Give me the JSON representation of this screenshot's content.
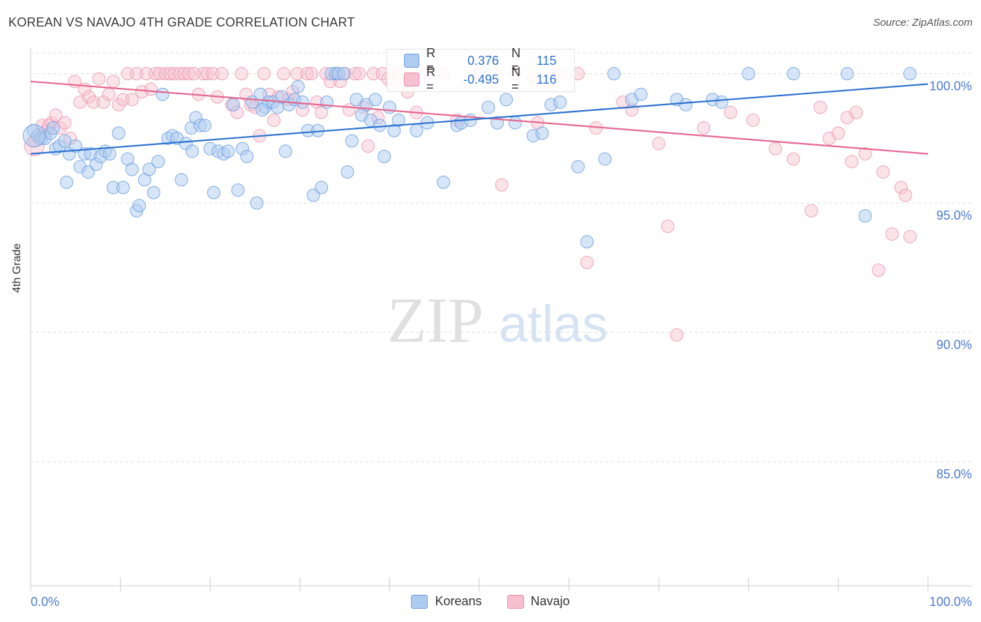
{
  "header": {
    "title": "KOREAN VS NAVAJO 4TH GRADE CORRELATION CHART",
    "source": "Source: ZipAtlas.com"
  },
  "watermark": {
    "zip": "ZIP",
    "atlas": "atlas"
  },
  "stats": {
    "koreans": {
      "r_label": "R =",
      "r_value": "0.376",
      "n_label": "N =",
      "n_value": "115"
    },
    "navajo": {
      "r_label": "R =",
      "r_value": "-0.495",
      "n_label": "N =",
      "n_value": "116"
    }
  },
  "legend": {
    "koreans": "Koreans",
    "navajo": "Navajo"
  },
  "colors": {
    "koreans_fill": "#aecbf0",
    "koreans_stroke": "#6a9ee0",
    "koreans_line": "#2f73d0",
    "navajo_fill": "#f6c0d0",
    "navajo_stroke": "#ea8eab",
    "navajo_line": "#e56890",
    "axis_label": "#4b7bd0",
    "grid": "#dddddd"
  },
  "chart_data": {
    "type": "scatter",
    "title": "KOREAN VS NAVAJO 4TH GRADE CORRELATION CHART",
    "ylabel": "4th Grade",
    "xlabel": "",
    "xlim": [
      0,
      100
    ],
    "ylim": [
      80.2,
      100.8
    ],
    "x_ticks": [
      "0.0%",
      "100.0%"
    ],
    "y_ticks": [
      {
        "value": 100,
        "label": "100.0%"
      },
      {
        "value": 95,
        "label": "95.0%"
      },
      {
        "value": 90,
        "label": "90.0%"
      },
      {
        "value": 85,
        "label": "85.0%"
      }
    ],
    "legend_position": "bottom",
    "grid": true,
    "series": [
      {
        "name": "Koreans",
        "trend": [
          [
            0,
            96.9
          ],
          [
            100,
            99.6
          ]
        ],
        "points": [
          [
            0.3,
            97.8
          ],
          [
            0.8,
            97.6
          ],
          [
            1.2,
            97.5
          ],
          [
            1.6,
            97.5
          ],
          [
            2.2,
            97.7
          ],
          [
            2.8,
            97.1
          ],
          [
            3.2,
            97.2
          ],
          [
            3.8,
            97.4
          ],
          [
            4.0,
            95.8
          ],
          [
            4.3,
            96.9
          ],
          [
            5.0,
            97.2
          ],
          [
            5.5,
            96.4
          ],
          [
            6.0,
            96.9
          ],
          [
            6.4,
            96.2
          ],
          [
            6.7,
            96.9
          ],
          [
            7.3,
            96.5
          ],
          [
            7.8,
            96.8
          ],
          [
            8.3,
            97.0
          ],
          [
            8.8,
            96.9
          ],
          [
            9.2,
            95.6
          ],
          [
            9.8,
            97.7
          ],
          [
            10.3,
            95.6
          ],
          [
            10.8,
            96.7
          ],
          [
            11.3,
            96.3
          ],
          [
            11.8,
            94.7
          ],
          [
            12.1,
            94.9
          ],
          [
            12.7,
            95.9
          ],
          [
            13.2,
            96.3
          ],
          [
            13.7,
            95.4
          ],
          [
            14.2,
            96.6
          ],
          [
            14.7,
            99.2
          ],
          [
            15.3,
            97.5
          ],
          [
            15.8,
            97.6
          ],
          [
            16.3,
            97.5
          ],
          [
            16.8,
            95.9
          ],
          [
            17.3,
            97.3
          ],
          [
            17.9,
            97.9
          ],
          [
            18.4,
            98.3
          ],
          [
            18.9,
            98.0
          ],
          [
            19.4,
            98.0
          ],
          [
            20.0,
            97.1
          ],
          [
            20.4,
            95.4
          ],
          [
            20.9,
            97.0
          ],
          [
            21.5,
            96.9
          ],
          [
            22.0,
            97.0
          ],
          [
            22.6,
            98.8
          ],
          [
            23.1,
            95.5
          ],
          [
            23.6,
            97.1
          ],
          [
            24.1,
            96.8
          ],
          [
            24.7,
            98.9
          ],
          [
            25.2,
            95.0
          ],
          [
            25.6,
            99.2
          ],
          [
            26.1,
            98.7
          ],
          [
            26.5,
            98.9
          ],
          [
            27.0,
            98.9
          ],
          [
            27.5,
            98.7
          ],
          [
            28.0,
            99.1
          ],
          [
            28.4,
            97.0
          ],
          [
            28.8,
            98.8
          ],
          [
            29.4,
            99.0
          ],
          [
            29.8,
            99.5
          ],
          [
            30.3,
            98.9
          ],
          [
            30.9,
            97.8
          ],
          [
            31.5,
            95.3
          ],
          [
            32.0,
            97.8
          ],
          [
            32.4,
            95.6
          ],
          [
            33.0,
            98.9
          ],
          [
            33.5,
            100.0
          ],
          [
            34.0,
            100.0
          ],
          [
            34.3,
            100.0
          ],
          [
            34.9,
            100.0
          ],
          [
            35.3,
            96.2
          ],
          [
            35.8,
            97.4
          ],
          [
            36.3,
            99.0
          ],
          [
            36.9,
            98.4
          ],
          [
            37.4,
            98.8
          ],
          [
            37.9,
            98.2
          ],
          [
            38.4,
            99.0
          ],
          [
            38.9,
            98.0
          ],
          [
            39.4,
            96.8
          ],
          [
            40.0,
            98.7
          ],
          [
            40.5,
            97.8
          ],
          [
            41.0,
            98.2
          ],
          [
            43.0,
            97.8
          ],
          [
            46.0,
            95.8
          ],
          [
            47.5,
            98.0
          ],
          [
            48.0,
            98.1
          ],
          [
            49.0,
            98.2
          ],
          [
            51.0,
            98.7
          ],
          [
            52.0,
            98.1
          ],
          [
            53.0,
            99.0
          ],
          [
            54.0,
            98.1
          ],
          [
            56.0,
            97.6
          ],
          [
            57.0,
            97.7
          ],
          [
            58.0,
            98.8
          ],
          [
            59.0,
            98.9
          ],
          [
            61.0,
            96.4
          ],
          [
            62.0,
            93.5
          ],
          [
            64.0,
            96.7
          ],
          [
            65.0,
            100.0
          ],
          [
            67.0,
            99.0
          ],
          [
            68.0,
            99.2
          ],
          [
            72.0,
            99.0
          ],
          [
            73.0,
            98.8
          ],
          [
            76.0,
            99.0
          ],
          [
            80.0,
            100.0
          ],
          [
            85.0,
            100.0
          ],
          [
            91.0,
            100.0
          ],
          [
            93.0,
            94.5
          ],
          [
            98.0,
            100.0
          ],
          [
            2.5,
            97.9
          ],
          [
            18.0,
            97.0
          ],
          [
            25.8,
            98.6
          ],
          [
            44.2,
            98.1
          ],
          [
            77.0,
            98.9
          ]
        ]
      },
      {
        "name": "Navajo",
        "trend": [
          [
            0,
            99.7
          ],
          [
            100,
            96.9
          ]
        ],
        "points": [
          [
            0.4,
            97.4
          ],
          [
            0.9,
            97.5
          ],
          [
            1.3,
            98.0
          ],
          [
            1.8,
            97.8
          ],
          [
            2.3,
            98.1
          ],
          [
            2.8,
            98.4
          ],
          [
            3.3,
            97.9
          ],
          [
            3.8,
            98.1
          ],
          [
            4.4,
            97.5
          ],
          [
            4.9,
            99.7
          ],
          [
            5.5,
            98.9
          ],
          [
            6.0,
            99.4
          ],
          [
            6.5,
            99.1
          ],
          [
            7.0,
            98.9
          ],
          [
            7.6,
            99.8
          ],
          [
            8.1,
            98.9
          ],
          [
            8.7,
            99.2
          ],
          [
            9.2,
            99.7
          ],
          [
            9.8,
            98.8
          ],
          [
            10.3,
            99.0
          ],
          [
            10.8,
            100.0
          ],
          [
            11.3,
            99.0
          ],
          [
            11.8,
            100.0
          ],
          [
            12.4,
            99.3
          ],
          [
            12.9,
            100.0
          ],
          [
            13.4,
            99.4
          ],
          [
            13.9,
            100.0
          ],
          [
            14.4,
            100.0
          ],
          [
            15.0,
            100.0
          ],
          [
            15.5,
            100.0
          ],
          [
            16.0,
            100.0
          ],
          [
            16.6,
            100.0
          ],
          [
            17.1,
            100.0
          ],
          [
            17.6,
            100.0
          ],
          [
            18.2,
            100.0
          ],
          [
            18.7,
            99.2
          ],
          [
            19.2,
            100.0
          ],
          [
            19.7,
            100.0
          ],
          [
            20.3,
            100.0
          ],
          [
            20.8,
            99.1
          ],
          [
            21.3,
            100.0
          ],
          [
            22.4,
            98.8
          ],
          [
            23.0,
            98.5
          ],
          [
            23.5,
            100.0
          ],
          [
            24.0,
            99.2
          ],
          [
            24.5,
            98.8
          ],
          [
            25.0,
            98.7
          ],
          [
            25.5,
            97.6
          ],
          [
            26.0,
            100.0
          ],
          [
            26.6,
            99.2
          ],
          [
            27.1,
            98.2
          ],
          [
            27.6,
            99.1
          ],
          [
            28.2,
            100.0
          ],
          [
            28.7,
            99.0
          ],
          [
            29.2,
            99.3
          ],
          [
            29.7,
            100.0
          ],
          [
            30.3,
            98.6
          ],
          [
            30.8,
            100.0
          ],
          [
            31.3,
            100.0
          ],
          [
            31.9,
            98.9
          ],
          [
            32.4,
            98.5
          ],
          [
            32.9,
            100.0
          ],
          [
            33.4,
            99.7
          ],
          [
            34.0,
            100.0
          ],
          [
            34.5,
            99.7
          ],
          [
            35.0,
            100.0
          ],
          [
            35.5,
            98.6
          ],
          [
            36.1,
            100.0
          ],
          [
            36.6,
            100.0
          ],
          [
            37.1,
            98.7
          ],
          [
            37.6,
            97.2
          ],
          [
            38.2,
            100.0
          ],
          [
            38.7,
            98.3
          ],
          [
            39.2,
            100.0
          ],
          [
            39.8,
            99.8
          ],
          [
            40.3,
            99.6
          ],
          [
            41.0,
            100.0
          ],
          [
            42.0,
            99.3
          ],
          [
            43.0,
            98.5
          ],
          [
            44.0,
            100.0
          ],
          [
            46.0,
            100.0
          ],
          [
            47.5,
            98.2
          ],
          [
            50.0,
            100.0
          ],
          [
            52.5,
            95.7
          ],
          [
            54.0,
            100.0
          ],
          [
            56.0,
            99.8
          ],
          [
            59.0,
            100.0
          ],
          [
            61.0,
            100.0
          ],
          [
            62.0,
            92.7
          ],
          [
            63.0,
            97.9
          ],
          [
            67.0,
            98.6
          ],
          [
            70.0,
            97.3
          ],
          [
            71.0,
            94.1
          ],
          [
            72.0,
            89.9
          ],
          [
            75.0,
            97.9
          ],
          [
            78.0,
            98.5
          ],
          [
            80.5,
            98.2
          ],
          [
            83.0,
            97.1
          ],
          [
            85.0,
            96.7
          ],
          [
            87.0,
            94.7
          ],
          [
            88.0,
            98.7
          ],
          [
            89.0,
            97.5
          ],
          [
            90.0,
            97.7
          ],
          [
            91.0,
            98.3
          ],
          [
            91.5,
            96.6
          ],
          [
            92.0,
            98.5
          ],
          [
            93.0,
            96.9
          ],
          [
            94.5,
            92.4
          ],
          [
            95.0,
            96.2
          ],
          [
            96.0,
            93.8
          ],
          [
            97.0,
            95.6
          ],
          [
            97.5,
            95.3
          ],
          [
            98.0,
            93.7
          ],
          [
            2.0,
            98.0
          ],
          [
            56.5,
            98.1
          ],
          [
            66.0,
            98.9
          ]
        ]
      }
    ]
  }
}
